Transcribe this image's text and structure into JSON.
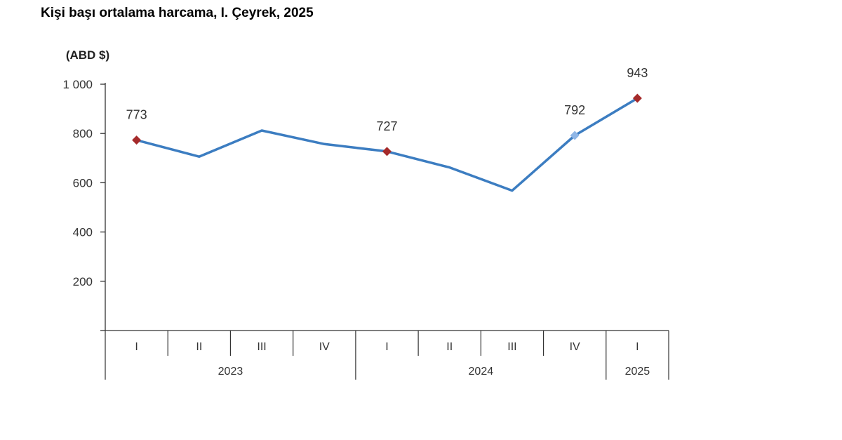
{
  "chart_data": {
    "type": "line",
    "title": "Kişi başı ortalama harcama, I. Çeyrek, 2025",
    "ylabel": "(ABD $)",
    "ylim": [
      0,
      1000
    ],
    "yticks": [
      200,
      400,
      600,
      800,
      1000
    ],
    "ytick_labels": [
      "200",
      "400",
      "600",
      "800",
      "1 000"
    ],
    "categories": [
      "I",
      "II",
      "III",
      "IV",
      "I",
      "II",
      "III",
      "IV",
      "I"
    ],
    "year_groups": [
      {
        "label": "2023",
        "span": 4
      },
      {
        "label": "2024",
        "span": 4
      },
      {
        "label": "2025",
        "span": 1
      }
    ],
    "series": [
      {
        "values": [
          773,
          706,
          812,
          757,
          727,
          662,
          568,
          792,
          943
        ],
        "color": "#3c7dc1"
      }
    ],
    "highlighted_points": [
      {
        "index": 0,
        "label": "773",
        "color": "#a52a2a"
      },
      {
        "index": 4,
        "label": "727",
        "color": "#a52a2a"
      },
      {
        "index": 7,
        "label": "792",
        "color": "#8fb6e6"
      },
      {
        "index": 8,
        "label": "943",
        "color": "#a52a2a"
      }
    ],
    "grid": false
  }
}
